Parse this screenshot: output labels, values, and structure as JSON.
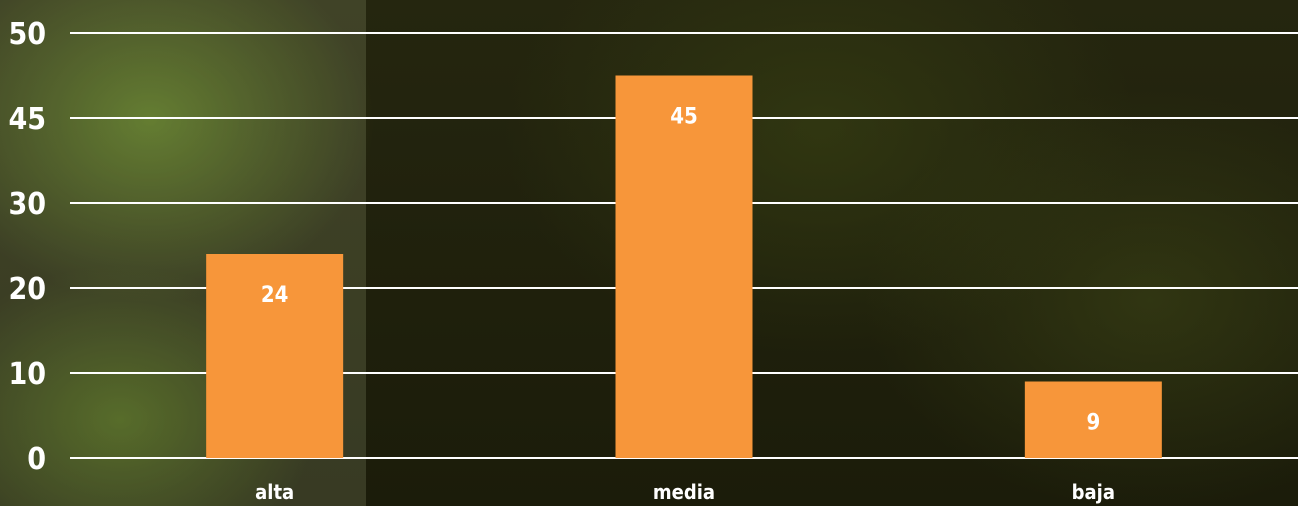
{
  "chart_data": {
    "type": "bar",
    "categories": [
      "alta",
      "media",
      "baja"
    ],
    "values": [
      24,
      45,
      9
    ],
    "data_labels": [
      "24",
      "45",
      "9"
    ],
    "y_ticks": [
      "0",
      "10",
      "20",
      "30",
      "45",
      "50"
    ],
    "title": "",
    "xlabel": "",
    "ylabel": "",
    "grid": true,
    "legend": "none",
    "colors": {
      "bar": "#f7963a",
      "gridline": "#ffffff",
      "text": "#ffffff"
    }
  }
}
